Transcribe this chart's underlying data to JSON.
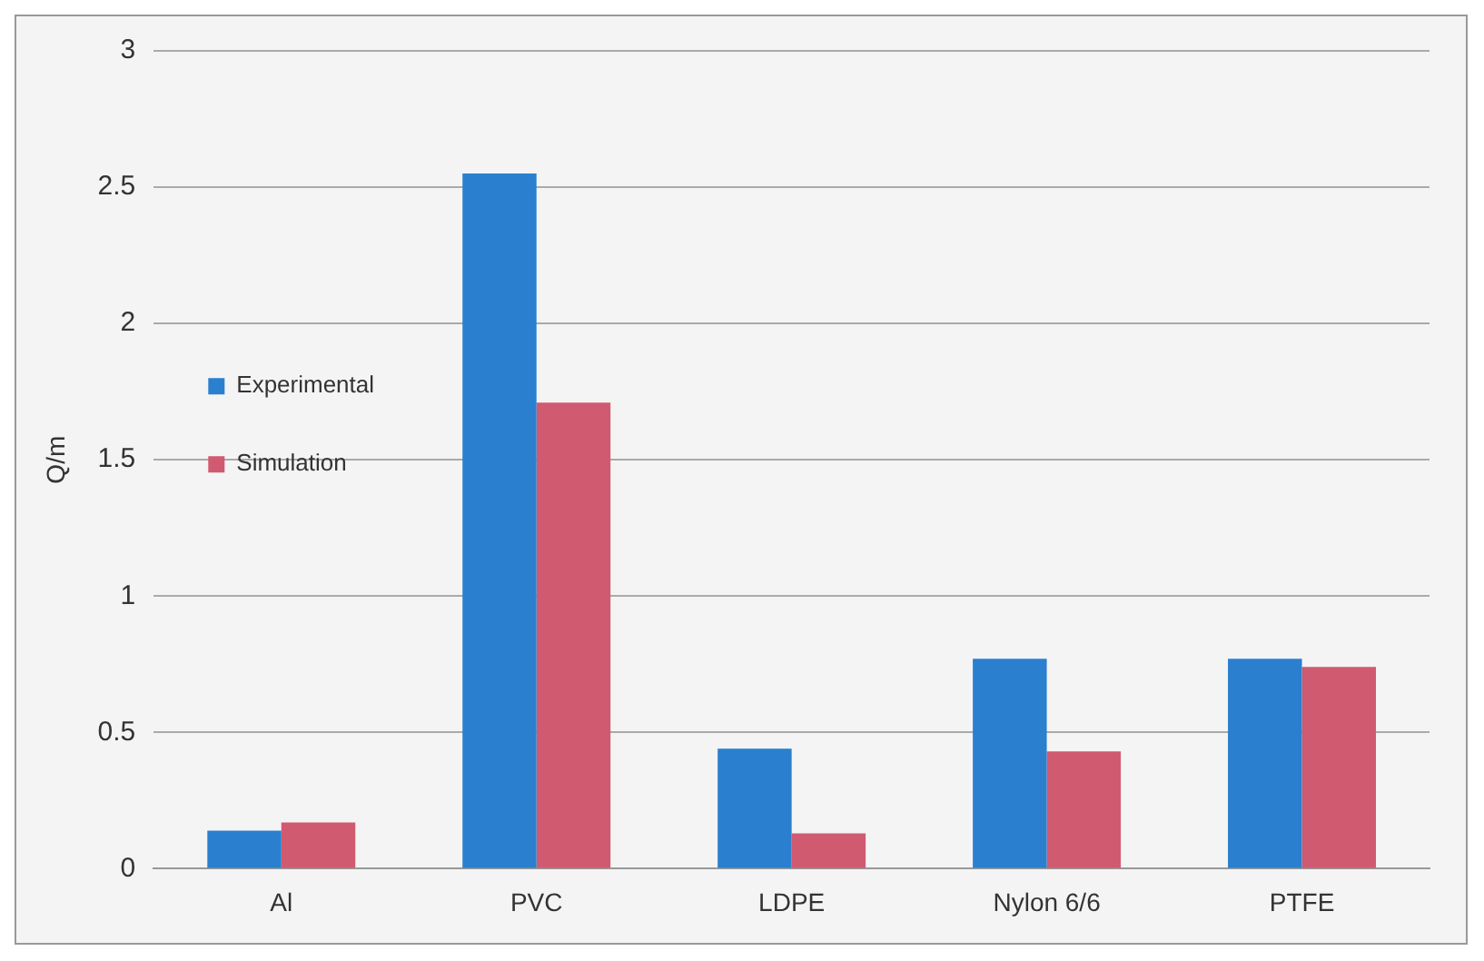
{
  "chart_data": {
    "type": "bar",
    "ylabel": "Q/m",
    "categories": [
      "Al",
      "PVC",
      "LDPE",
      "Nylon 6/6",
      "PTFE"
    ],
    "series": [
      {
        "name": "Experimental",
        "color": "#2a7fcf",
        "values": [
          0.14,
          2.55,
          0.44,
          0.77,
          0.77
        ]
      },
      {
        "name": "Simulation",
        "color": "#d05a70",
        "values": [
          0.17,
          1.71,
          0.13,
          0.43,
          0.74
        ]
      }
    ],
    "ylim": [
      0,
      3
    ],
    "yticks": [
      0,
      0.5,
      1,
      1.5,
      2,
      2.5,
      3
    ],
    "grid": "y",
    "legend": "top"
  }
}
